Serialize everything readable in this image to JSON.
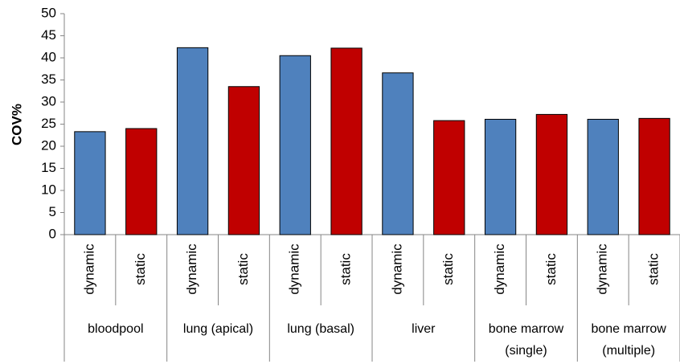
{
  "chart_data": {
    "type": "bar",
    "ylabel": "COV%",
    "categories": [
      "dynamic",
      "static",
      "dynamic",
      "static",
      "dynamic",
      "static",
      "dynamic",
      "static",
      "dynamic",
      "static",
      "dynamic",
      "static"
    ],
    "groups": [
      "bloodpool",
      "lung (apical)",
      "lung (basal)",
      "liver",
      "bone marrow (single)",
      "bone marrow (multiple)"
    ],
    "values": [
      23.3,
      24.0,
      42.3,
      33.5,
      40.5,
      42.2,
      36.6,
      25.8,
      26.1,
      27.2,
      26.1,
      26.3
    ],
    "colors": [
      "#4f81bd",
      "#c00000",
      "#4f81bd",
      "#c00000",
      "#4f81bd",
      "#c00000",
      "#4f81bd",
      "#c00000",
      "#4f81bd",
      "#c00000",
      "#4f81bd",
      "#c00000"
    ],
    "ylim": [
      0,
      50
    ],
    "yticks": [
      0,
      5,
      10,
      15,
      20,
      25,
      30,
      35,
      40,
      45,
      50
    ],
    "grid": false
  }
}
